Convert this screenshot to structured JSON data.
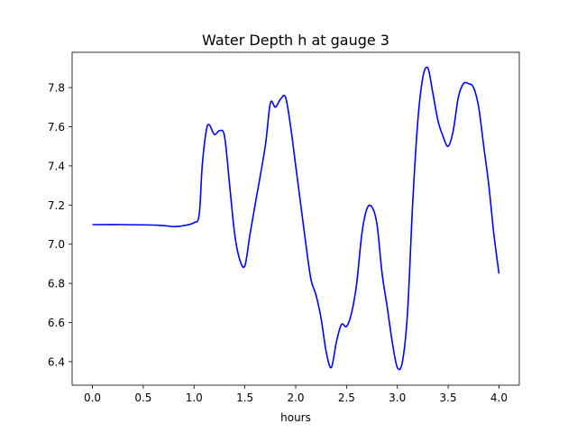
{
  "chart_data": {
    "type": "line",
    "title": "Water Depth h at gauge 3",
    "xlabel": "hours",
    "ylabel": "",
    "xlim": [
      -0.2,
      4.2
    ],
    "ylim": [
      6.28,
      7.98
    ],
    "xticks": [
      0.0,
      0.5,
      1.0,
      1.5,
      2.0,
      2.5,
      3.0,
      3.5,
      4.0
    ],
    "xtick_labels": [
      "0.0",
      "0.5",
      "1.0",
      "1.5",
      "2.0",
      "2.5",
      "3.0",
      "3.5",
      "4.0"
    ],
    "yticks": [
      6.4,
      6.6,
      6.8,
      7.0,
      7.2,
      7.4,
      7.6,
      7.8
    ],
    "ytick_labels": [
      "6.4",
      "6.6",
      "6.8",
      "7.0",
      "7.2",
      "7.4",
      "7.6",
      "7.8"
    ],
    "grid": false,
    "series": [
      {
        "color": "#0000ff",
        "x": [
          0.0,
          0.3,
          0.65,
          0.8,
          0.9,
          1.0,
          1.05,
          1.08,
          1.12,
          1.15,
          1.2,
          1.25,
          1.3,
          1.35,
          1.4,
          1.45,
          1.5,
          1.55,
          1.6,
          1.7,
          1.75,
          1.8,
          1.85,
          1.9,
          1.95,
          2.0,
          2.05,
          2.1,
          2.15,
          2.2,
          2.25,
          2.3,
          2.35,
          2.4,
          2.45,
          2.5,
          2.55,
          2.6,
          2.65,
          2.7,
          2.75,
          2.8,
          2.85,
          2.9,
          2.95,
          3.0,
          3.05,
          3.1,
          3.15,
          3.2,
          3.25,
          3.3,
          3.35,
          3.4,
          3.45,
          3.5,
          3.55,
          3.6,
          3.65,
          3.7,
          3.75,
          3.8,
          3.85,
          3.9,
          3.95,
          4.0
        ],
        "y": [
          7.1,
          7.1,
          7.097,
          7.09,
          7.095,
          7.11,
          7.15,
          7.4,
          7.58,
          7.61,
          7.56,
          7.58,
          7.55,
          7.3,
          7.05,
          6.92,
          6.89,
          7.05,
          7.2,
          7.5,
          7.72,
          7.7,
          7.74,
          7.75,
          7.6,
          7.4,
          7.2,
          7.0,
          6.82,
          6.74,
          6.62,
          6.45,
          6.37,
          6.5,
          6.59,
          6.58,
          6.65,
          6.8,
          7.05,
          7.18,
          7.19,
          7.1,
          6.85,
          6.68,
          6.5,
          6.37,
          6.4,
          6.65,
          7.2,
          7.62,
          7.85,
          7.9,
          7.77,
          7.63,
          7.55,
          7.5,
          7.58,
          7.75,
          7.82,
          7.82,
          7.8,
          7.7,
          7.5,
          7.3,
          7.05,
          6.85
        ]
      }
    ]
  }
}
